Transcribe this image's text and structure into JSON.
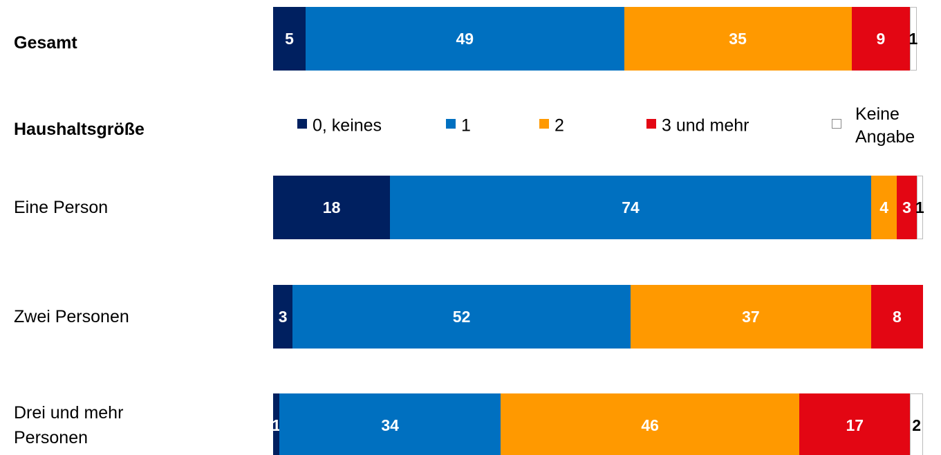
{
  "chart_data": {
    "type": "bar",
    "orientation": "horizontal",
    "stacked": true,
    "group_label": "Haushaltsgröße",
    "categories": [
      "Gesamt",
      "Eine Person",
      "Zwei Personen",
      "Drei und mehr Personen"
    ],
    "xlim": [
      0,
      100
    ],
    "series": [
      {
        "name": "0, keines",
        "color": "#002060",
        "values": [
          5,
          18,
          3,
          1
        ]
      },
      {
        "name": "1",
        "color": "#0070c0",
        "values": [
          49,
          74,
          52,
          34
        ]
      },
      {
        "name": "2",
        "color": "#ff9900",
        "values": [
          35,
          4,
          37,
          46
        ]
      },
      {
        "name": "3 und mehr",
        "color": "#e30613",
        "values": [
          9,
          3,
          8,
          17
        ]
      },
      {
        "name": "Keine Angabe",
        "color": "#ffffff",
        "values": [
          1,
          1,
          null,
          2
        ]
      }
    ]
  }
}
